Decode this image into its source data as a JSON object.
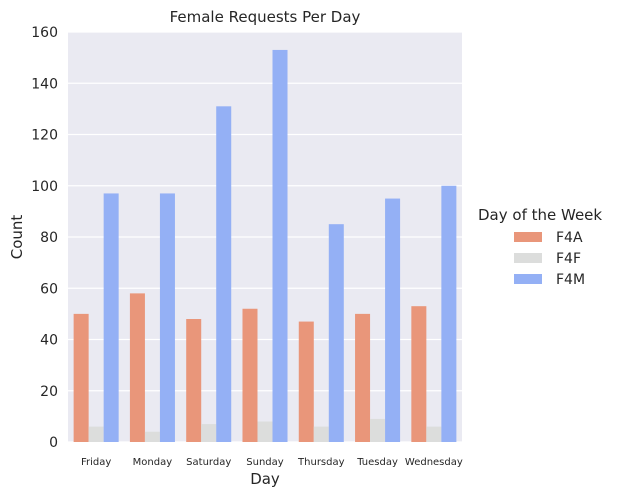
{
  "chart_data": {
    "type": "bar",
    "title": "Female Requests Per Day",
    "xlabel": "Day",
    "ylabel": "Count",
    "ylim": [
      0,
      160
    ],
    "yticks": [
      0,
      20,
      40,
      60,
      80,
      100,
      120,
      140,
      160
    ],
    "categories": [
      "Friday",
      "Monday",
      "Saturday",
      "Sunday",
      "Thursday",
      "Tuesday",
      "Wednesday"
    ],
    "series": [
      {
        "name": "F4A",
        "color": "#e9967a",
        "values": [
          50,
          58,
          48,
          52,
          47,
          50,
          53
        ]
      },
      {
        "name": "F4F",
        "color": "#dcdddc",
        "values": [
          6,
          4,
          7,
          8,
          6,
          9,
          6
        ]
      },
      {
        "name": "F4M",
        "color": "#94b0f5",
        "values": [
          97,
          97,
          131,
          153,
          85,
          95,
          100
        ]
      }
    ],
    "legend": {
      "title": "Day of the Week",
      "placement": "right"
    },
    "grid": true
  }
}
